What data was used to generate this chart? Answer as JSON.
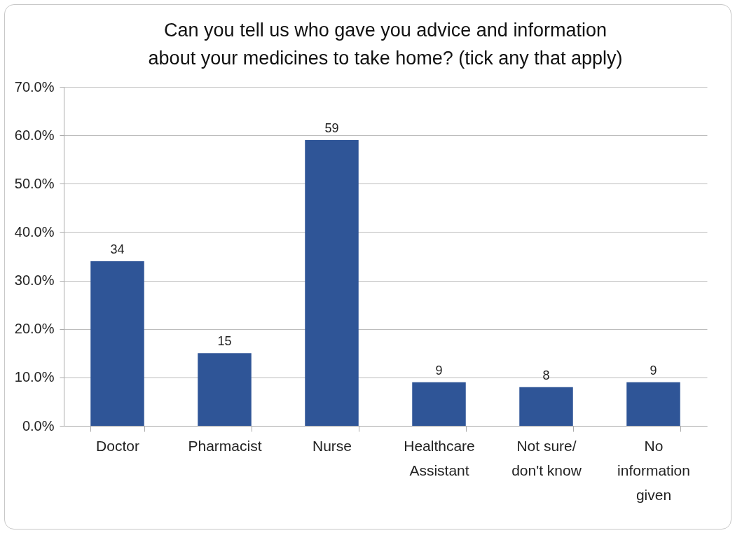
{
  "chart_data": {
    "type": "bar",
    "title": "Can you tell us who gave you advice and information about your medicines to take home? (tick any that apply)",
    "categories": [
      "Doctor",
      "Pharmacist",
      "Nurse",
      "Healthcare Assistant",
      "Not sure/ don't know",
      "No information given"
    ],
    "values": [
      34,
      15,
      59,
      9,
      8,
      9
    ],
    "color": "#2f5597",
    "data_labels": true,
    "ylim": [
      0,
      70
    ],
    "yticks": [
      {
        "value": 0,
        "label": "0.0%"
      },
      {
        "value": 10,
        "label": "10.0%"
      },
      {
        "value": 20,
        "label": "20.0%"
      },
      {
        "value": 30,
        "label": "30.0%"
      },
      {
        "value": 40,
        "label": "40.0%"
      },
      {
        "value": 50,
        "label": "50.0%"
      },
      {
        "value": 60,
        "label": "60.0%"
      },
      {
        "value": 70,
        "label": "70.0%"
      }
    ],
    "grid": "y"
  }
}
